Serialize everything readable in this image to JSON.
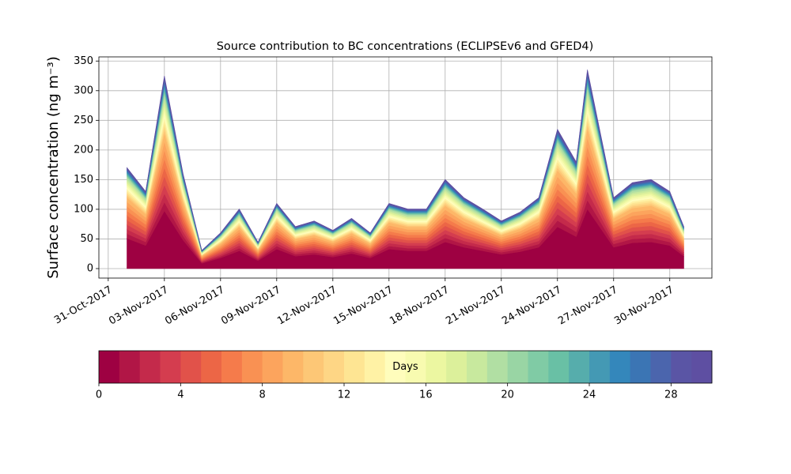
{
  "chart_data": {
    "type": "stacked_area",
    "title": "Source contribution to BC concentrations (ECLIPSEv6 and GFED4)",
    "y_label": "Surface concentration (ng m⁻³)",
    "x": [
      1,
      2,
      3,
      4,
      5,
      6,
      7,
      8,
      9,
      10,
      11,
      12,
      13,
      14,
      15,
      16,
      17,
      18,
      19,
      20,
      21,
      22,
      23,
      24,
      25,
      25.6,
      27,
      28,
      29,
      30,
      30.75
    ],
    "xlim": [
      -0.5,
      32.25
    ],
    "xticks": [
      {
        "value": 0,
        "label": "31-Oct-2017"
      },
      {
        "value": 3,
        "label": "03-Nov-2017"
      },
      {
        "value": 6,
        "label": "06-Nov-2017"
      },
      {
        "value": 9,
        "label": "09-Nov-2017"
      },
      {
        "value": 12,
        "label": "12-Nov-2017"
      },
      {
        "value": 15,
        "label": "15-Nov-2017"
      },
      {
        "value": 18,
        "label": "18-Nov-2017"
      },
      {
        "value": 21,
        "label": "21-Nov-2017"
      },
      {
        "value": 24,
        "label": "24-Nov-2017"
      },
      {
        "value": 27,
        "label": "27-Nov-2017"
      },
      {
        "value": 30,
        "label": "30-Nov-2017"
      }
    ],
    "ylim": [
      -16,
      357
    ],
    "yticks": [
      0,
      50,
      100,
      150,
      200,
      250,
      300,
      350
    ],
    "grid": true,
    "series": [
      {
        "color": "#9e0142",
        "values": [
          51,
          39,
          97.5,
          48,
          9,
          18,
          30,
          13.5,
          33,
          21,
          24,
          19.5,
          25.5,
          18,
          33,
          30,
          30,
          45,
          36,
          30,
          24,
          28.5,
          36,
          70.5,
          54,
          100.5,
          36,
          43.5,
          45,
          39,
          21
        ]
      },
      {
        "color": "#b11646",
        "values": [
          7.7,
          5.9,
          14.6,
          7.2,
          1.4,
          2.7,
          4.5,
          2.0,
          5.0,
          3.2,
          3.6,
          2.9,
          3.8,
          2.7,
          5.0,
          4.5,
          4.5,
          6.8,
          5.4,
          4.5,
          3.6,
          4.3,
          5.4,
          10.6,
          8.1,
          15.1,
          5.4,
          6.5,
          6.8,
          5.9,
          3.2
        ]
      },
      {
        "color": "#c42a4b",
        "values": [
          7.7,
          5.9,
          14.6,
          7.2,
          1.4,
          2.7,
          4.5,
          2.0,
          5.0,
          3.2,
          3.6,
          2.9,
          3.8,
          2.7,
          5.0,
          4.5,
          4.5,
          6.8,
          5.4,
          4.5,
          3.6,
          4.3,
          5.4,
          10.6,
          8.1,
          15.1,
          5.4,
          6.5,
          6.8,
          5.9,
          3.2
        ]
      },
      {
        "color": "#d43d4f",
        "values": [
          7.7,
          5.9,
          14.6,
          7.2,
          1.4,
          2.7,
          4.5,
          2.0,
          5.0,
          3.2,
          3.6,
          2.9,
          3.8,
          2.7,
          5.0,
          4.5,
          4.5,
          6.8,
          5.4,
          4.5,
          3.6,
          4.3,
          5.4,
          10.6,
          8.1,
          15.1,
          5.4,
          6.5,
          6.8,
          5.9,
          3.2
        ]
      },
      {
        "color": "#e1524a",
        "values": [
          7.7,
          5.9,
          14.6,
          7.2,
          1.4,
          2.7,
          4.5,
          2.0,
          5.0,
          3.2,
          3.6,
          2.9,
          3.8,
          2.7,
          5.0,
          4.5,
          4.5,
          6.8,
          5.4,
          4.5,
          3.6,
          4.3,
          5.4,
          10.6,
          8.1,
          15.1,
          5.4,
          6.5,
          6.8,
          5.9,
          3.2
        ]
      },
      {
        "color": "#ec6646",
        "values": [
          7.7,
          5.9,
          14.6,
          7.2,
          1.4,
          2.7,
          4.5,
          2.0,
          5.0,
          3.2,
          3.6,
          2.9,
          3.8,
          2.7,
          5.0,
          4.5,
          4.5,
          6.8,
          5.4,
          4.5,
          3.6,
          4.3,
          5.4,
          10.6,
          8.1,
          15.1,
          5.4,
          6.5,
          6.8,
          5.9,
          3.2
        ]
      },
      {
        "color": "#f57b4b",
        "values": [
          7.7,
          5.9,
          14.6,
          7.2,
          1.4,
          2.7,
          4.5,
          2.0,
          5.0,
          3.2,
          3.6,
          2.9,
          3.8,
          2.7,
          5.0,
          4.5,
          4.5,
          6.8,
          5.4,
          4.5,
          3.6,
          4.3,
          5.4,
          10.6,
          8.1,
          15.1,
          5.4,
          6.5,
          6.8,
          5.9,
          3.2
        ]
      },
      {
        "color": "#f99153",
        "values": [
          7.7,
          5.9,
          14.6,
          7.2,
          1.4,
          2.7,
          4.5,
          2.0,
          5.0,
          3.2,
          3.6,
          2.9,
          3.8,
          2.7,
          5.0,
          4.5,
          4.5,
          6.8,
          5.4,
          4.5,
          3.6,
          4.3,
          5.4,
          10.6,
          8.1,
          15.1,
          5.4,
          6.5,
          6.8,
          5.9,
          3.2
        ]
      },
      {
        "color": "#fca45d",
        "values": [
          7.7,
          5.9,
          14.6,
          7.2,
          1.4,
          2.7,
          4.5,
          2.0,
          5.0,
          3.2,
          3.6,
          2.9,
          3.8,
          2.7,
          5.0,
          4.5,
          4.5,
          6.8,
          5.4,
          4.5,
          3.6,
          4.3,
          5.4,
          10.6,
          8.1,
          15.1,
          5.4,
          6.5,
          6.8,
          5.9,
          3.2
        ]
      },
      {
        "color": "#fdb768",
        "values": [
          7.7,
          5.9,
          14.6,
          7.2,
          1.4,
          2.7,
          4.5,
          2.0,
          5.0,
          3.2,
          3.6,
          2.9,
          3.8,
          2.7,
          5.0,
          4.5,
          4.5,
          6.8,
          5.4,
          4.5,
          3.6,
          4.3,
          5.4,
          10.6,
          8.1,
          15.1,
          5.4,
          6.5,
          6.8,
          5.9,
          3.2
        ]
      },
      {
        "color": "#fdc776",
        "values": [
          3.4,
          2.6,
          6.5,
          3.2,
          0.6,
          1.2,
          2,
          0.9,
          2.2,
          1.4,
          1.6,
          1.3,
          1.7,
          1.2,
          2.2,
          2,
          2,
          3,
          2.4,
          2,
          1.6,
          1.9,
          2.4,
          4.7,
          3.6,
          6.7,
          2.4,
          2.9,
          3,
          2.6,
          1.4
        ]
      },
      {
        "color": "#fed685",
        "values": [
          3.4,
          2.6,
          6.5,
          3.2,
          0.6,
          1.2,
          2,
          0.9,
          2.2,
          1.4,
          1.6,
          1.3,
          1.7,
          1.2,
          2.2,
          2,
          2,
          3,
          2.4,
          2,
          1.6,
          1.9,
          2.4,
          4.7,
          3.6,
          6.7,
          2.4,
          2.9,
          3,
          2.6,
          1.4
        ]
      },
      {
        "color": "#fee593",
        "values": [
          3.4,
          2.6,
          6.5,
          3.2,
          0.6,
          1.2,
          2,
          0.9,
          2.2,
          1.4,
          1.6,
          1.3,
          1.7,
          1.2,
          2.2,
          2,
          2,
          3,
          2.4,
          2,
          1.6,
          1.9,
          2.4,
          4.7,
          3.6,
          6.7,
          2.4,
          2.9,
          3,
          2.6,
          1.4
        ]
      },
      {
        "color": "#fff2a5",
        "values": [
          3.4,
          2.6,
          6.5,
          3.2,
          0.6,
          1.2,
          2,
          0.9,
          2.2,
          1.4,
          1.6,
          1.3,
          1.7,
          1.2,
          2.2,
          2,
          2,
          3,
          2.4,
          2,
          1.6,
          1.9,
          2.4,
          4.7,
          3.6,
          6.7,
          2.4,
          2.9,
          3,
          2.6,
          1.4
        ]
      },
      {
        "color": "#fffdbc",
        "values": [
          3.4,
          2.6,
          6.5,
          3.2,
          0.6,
          1.2,
          2,
          0.9,
          2.2,
          1.4,
          1.6,
          1.3,
          1.7,
          1.2,
          2.2,
          2,
          2,
          3,
          2.4,
          2,
          1.6,
          1.9,
          2.4,
          4.7,
          3.6,
          6.7,
          2.4,
          2.9,
          3,
          2.6,
          1.4
        ]
      },
      {
        "color": "#f8fbb0",
        "values": [
          3.4,
          2.6,
          6.5,
          3.2,
          0.6,
          1.2,
          2,
          0.9,
          2.2,
          1.4,
          1.6,
          1.3,
          1.7,
          1.2,
          2.2,
          2,
          2,
          3,
          2.4,
          2,
          1.6,
          1.9,
          2.4,
          4.7,
          3.6,
          6.7,
          2.4,
          2.9,
          3,
          2.6,
          1.4
        ]
      },
      {
        "color": "#ecf7a1",
        "values": [
          3.4,
          2.6,
          6.5,
          3.2,
          0.6,
          1.2,
          2,
          0.9,
          2.2,
          1.4,
          1.6,
          1.3,
          1.7,
          1.2,
          2.2,
          2,
          2,
          3,
          2.4,
          2,
          1.6,
          1.9,
          2.4,
          4.7,
          3.6,
          6.7,
          2.4,
          2.9,
          3,
          2.6,
          1.4
        ]
      },
      {
        "color": "#dcf09b",
        "values": [
          3.4,
          2.6,
          6.5,
          3.2,
          0.6,
          1.2,
          2,
          0.9,
          2.2,
          1.4,
          1.6,
          1.3,
          1.7,
          1.2,
          2.2,
          2,
          2,
          3,
          2.4,
          2,
          1.6,
          1.9,
          2.4,
          4.7,
          3.6,
          6.7,
          2.4,
          2.9,
          3,
          2.6,
          1.4
        ]
      },
      {
        "color": "#c8e99e",
        "values": [
          3.4,
          2.6,
          6.5,
          3.2,
          0.6,
          1.2,
          2,
          0.9,
          2.2,
          1.4,
          1.6,
          1.3,
          1.7,
          1.2,
          2.2,
          2,
          2,
          3,
          2.4,
          2,
          1.6,
          1.9,
          2.4,
          4.7,
          3.6,
          6.7,
          2.4,
          2.9,
          3,
          2.6,
          1.4
        ]
      },
      {
        "color": "#b1dfa3",
        "values": [
          3.4,
          2.6,
          6.5,
          3.2,
          0.6,
          1.2,
          2,
          0.9,
          2.2,
          1.4,
          1.6,
          1.3,
          1.7,
          1.2,
          2.2,
          2,
          2,
          3,
          2.4,
          2,
          1.6,
          1.9,
          2.4,
          4.7,
          3.6,
          6.7,
          2.4,
          2.9,
          3,
          2.6,
          1.4
        ]
      },
      {
        "color": "#99d5a4",
        "values": [
          1.6,
          1.2,
          3.1,
          1.5,
          0.3,
          0.6,
          1,
          0.4,
          1,
          0.7,
          0.8,
          0.6,
          0.8,
          0.6,
          1,
          1,
          1,
          1.4,
          1.1,
          1,
          0.8,
          0.9,
          1.1,
          2.2,
          1.7,
          3.2,
          1.1,
          1.4,
          1.4,
          1.2,
          0.7
        ]
      },
      {
        "color": "#80cba5",
        "values": [
          1.6,
          1.2,
          3.1,
          1.5,
          0.3,
          0.6,
          1,
          0.4,
          1,
          0.7,
          0.8,
          0.6,
          0.8,
          0.6,
          1,
          1,
          1,
          1.4,
          1.1,
          1,
          0.8,
          0.9,
          1.1,
          2.2,
          1.7,
          3.2,
          1.1,
          1.4,
          1.4,
          1.2,
          0.7
        ]
      },
      {
        "color": "#69c0a5",
        "values": [
          1.6,
          1.2,
          3.1,
          1.5,
          0.3,
          0.6,
          1,
          0.4,
          1,
          0.7,
          0.8,
          0.6,
          0.8,
          0.6,
          1,
          1,
          1,
          1.4,
          1.1,
          1,
          0.8,
          0.9,
          1.1,
          2.2,
          1.7,
          3.2,
          1.1,
          1.4,
          1.4,
          1.2,
          0.7
        ]
      },
      {
        "color": "#56adac",
        "values": [
          1.6,
          1.2,
          3.1,
          1.5,
          0.3,
          0.6,
          1,
          0.4,
          1,
          0.7,
          0.8,
          0.6,
          0.8,
          0.6,
          1,
          1,
          1,
          1.4,
          1.1,
          1,
          0.8,
          0.9,
          1.1,
          2.2,
          1.7,
          3.2,
          1.1,
          1.4,
          1.4,
          1.2,
          0.7
        ]
      },
      {
        "color": "#4499b4",
        "values": [
          1.6,
          1.2,
          3.1,
          1.5,
          0.3,
          0.6,
          1,
          0.4,
          1,
          0.7,
          0.8,
          0.6,
          0.8,
          0.6,
          1,
          1,
          1,
          1.4,
          1.1,
          1,
          0.8,
          0.9,
          1.1,
          2.2,
          1.7,
          3.2,
          1.1,
          1.4,
          1.4,
          1.2,
          0.7
        ]
      },
      {
        "color": "#3487bb",
        "values": [
          1.6,
          1.2,
          3.1,
          1.5,
          0.3,
          0.6,
          1,
          0.4,
          1,
          0.7,
          0.8,
          0.6,
          0.8,
          0.6,
          1,
          1,
          1,
          1.4,
          1.1,
          1,
          0.8,
          0.9,
          1.1,
          2.2,
          1.7,
          3.2,
          1.1,
          1.4,
          1.4,
          1.2,
          0.7
        ]
      },
      {
        "color": "#3b75b4",
        "values": [
          1.6,
          1.2,
          3.1,
          1.5,
          0.3,
          0.6,
          1,
          0.4,
          1,
          0.7,
          0.8,
          0.6,
          0.8,
          0.6,
          1,
          1,
          1,
          1.4,
          1.1,
          1,
          0.8,
          0.9,
          1.1,
          2.2,
          1.7,
          3.2,
          1.1,
          1.4,
          1.4,
          1.2,
          0.7
        ]
      },
      {
        "color": "#4b65ad",
        "values": [
          1.6,
          1.2,
          3.1,
          1.5,
          0.3,
          0.6,
          1,
          0.4,
          1,
          0.7,
          0.8,
          0.6,
          0.8,
          0.6,
          1,
          1,
          1,
          1.4,
          1.1,
          1,
          0.8,
          0.9,
          1.1,
          2.2,
          1.7,
          3.2,
          1.1,
          1.4,
          1.4,
          1.2,
          0.7
        ]
      },
      {
        "color": "#5a55a5",
        "values": [
          1.6,
          1.2,
          3.1,
          1.5,
          0.3,
          0.6,
          1,
          0.4,
          1,
          0.7,
          0.8,
          0.6,
          0.8,
          0.6,
          1,
          1,
          1,
          1.4,
          1.1,
          1,
          0.8,
          0.9,
          1.1,
          2.2,
          1.7,
          3.2,
          1.1,
          1.4,
          1.4,
          1.2,
          0.7
        ]
      },
      {
        "color": "#5e4fa2",
        "values": [
          1.6,
          1.2,
          3.1,
          1.5,
          0.3,
          0.6,
          1,
          0.4,
          1,
          0.7,
          0.8,
          0.6,
          0.8,
          0.6,
          1,
          1,
          1,
          1.4,
          1.1,
          1,
          0.8,
          0.9,
          1.1,
          2.2,
          1.7,
          3.2,
          1.1,
          1.4,
          1.4,
          1.2,
          0.7
        ]
      }
    ],
    "colorbar": {
      "label": "Days",
      "lim": [
        0,
        30
      ],
      "ticks": [
        0,
        4,
        8,
        12,
        16,
        20,
        24,
        28
      ]
    }
  }
}
